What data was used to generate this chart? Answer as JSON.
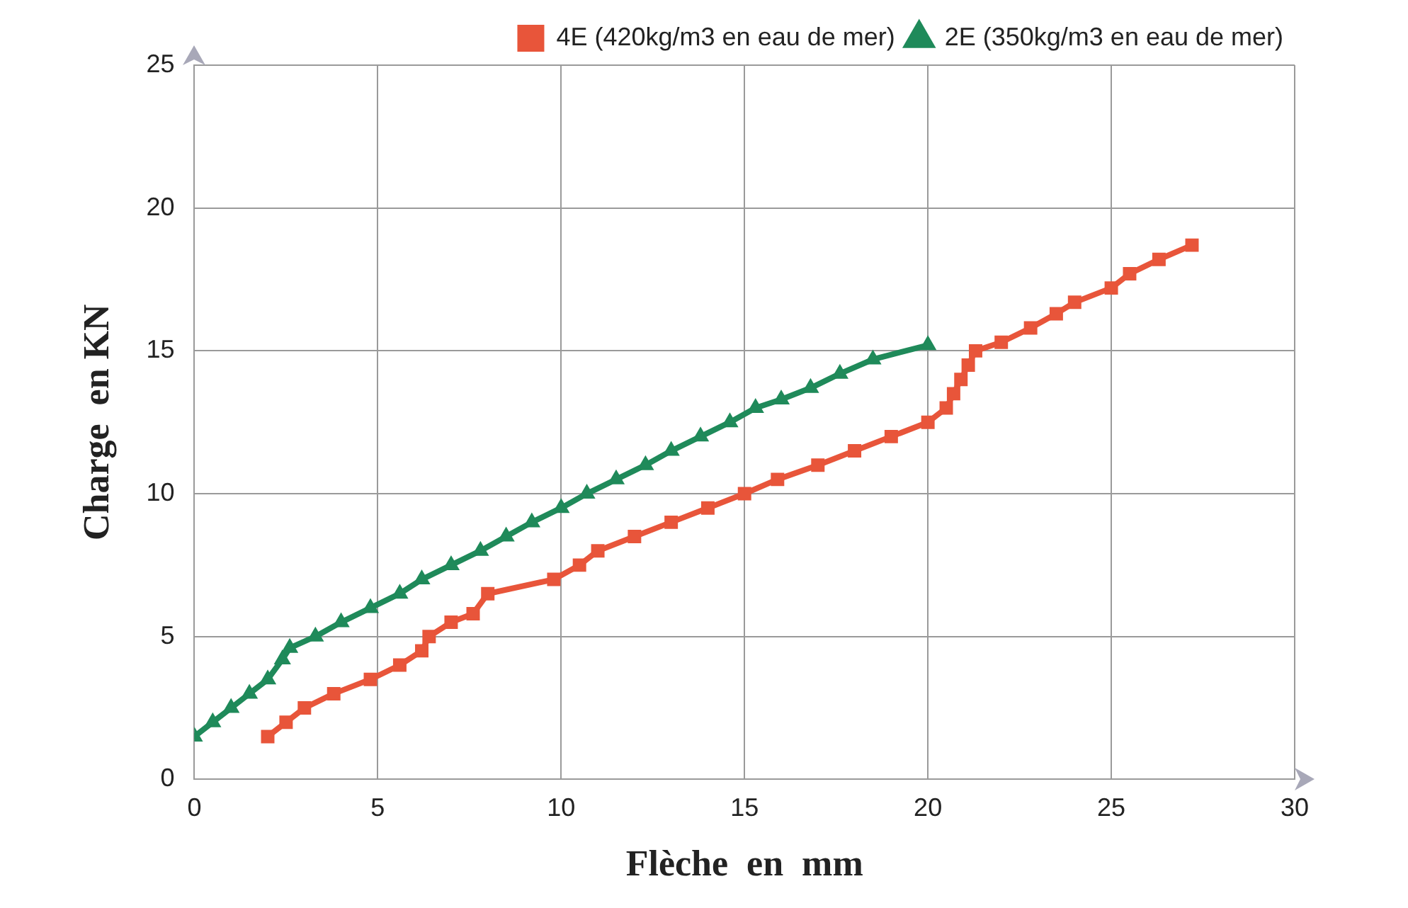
{
  "chart_data": {
    "type": "line",
    "xlabel": "Flèche  en  mm",
    "ylabel": "Charge  en KN",
    "xlim": [
      0,
      30
    ],
    "xticks": [
      0,
      5,
      10,
      15,
      20,
      25,
      30
    ],
    "ylim": [
      0,
      25
    ],
    "yticks": [
      0,
      5,
      10,
      15,
      20,
      25
    ],
    "grid": true,
    "legend": "top right",
    "line_style": "solid",
    "series": [
      {
        "name": "4E (420kg/m3 en eau de mer)",
        "color": "#e8553a",
        "marker": "square",
        "x": [
          2,
          2.5,
          3,
          3.8,
          4.8,
          5.6,
          6.2,
          6.4,
          7,
          7.6,
          8,
          9.8,
          10.5,
          11,
          12,
          13,
          14,
          15,
          15.9,
          17,
          18,
          19,
          20,
          20.5,
          20.7,
          20.9,
          21.1,
          21.3,
          22,
          22.8,
          23.5,
          24,
          25,
          25.5,
          26.3,
          27.2
        ],
        "values": [
          1.5,
          2,
          2.5,
          3,
          3.5,
          4,
          4.5,
          5,
          5.5,
          5.8,
          6.5,
          7,
          7.5,
          8,
          8.5,
          9,
          9.5,
          10,
          10.5,
          11,
          11.5,
          12,
          12.5,
          13,
          13.5,
          14,
          14.5,
          15,
          15.3,
          15.8,
          16.3,
          16.7,
          17.2,
          17.7,
          18.2,
          18.7
        ]
      },
      {
        "name": "2E (350kg/m3 en eau de mer)",
        "color": "#1f8a5a",
        "marker": "triangle",
        "x": [
          0,
          0.5,
          1,
          1.5,
          2,
          2.4,
          2.6,
          3.3,
          4,
          4.8,
          5.6,
          6.2,
          7,
          7.8,
          8.5,
          9.2,
          10,
          10.7,
          11.5,
          12.3,
          13,
          13.8,
          14.6,
          15.3,
          16,
          16.8,
          17.6,
          18.5,
          20
        ],
        "values": [
          1.5,
          2,
          2.5,
          3,
          3.5,
          4.2,
          4.6,
          5,
          5.5,
          6,
          6.5,
          7,
          7.5,
          8,
          8.5,
          9,
          9.5,
          10,
          10.5,
          11,
          11.5,
          12,
          12.5,
          13,
          13.3,
          13.7,
          14.2,
          14.7,
          15.2
        ]
      }
    ]
  }
}
